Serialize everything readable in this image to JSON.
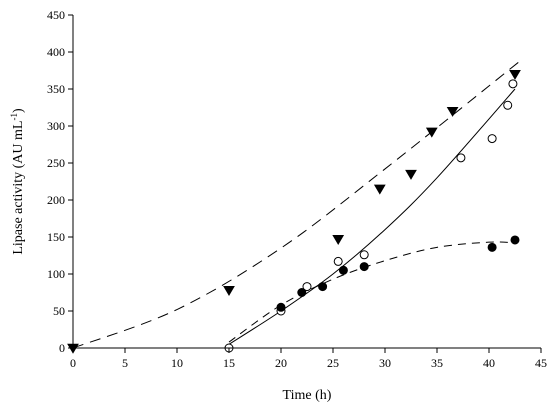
{
  "chart_data": {
    "type": "scatter",
    "title": "",
    "xlabel": "Time (h)",
    "ylabel_main": "Lipase activity (AU mL",
    "ylabel_sup": "-1",
    "ylabel_close": ")",
    "xlim": [
      0,
      45
    ],
    "ylim": [
      0,
      450
    ],
    "xticks": [
      0,
      5,
      10,
      15,
      20,
      25,
      30,
      35,
      40,
      45
    ],
    "yticks": [
      0,
      50,
      100,
      150,
      200,
      250,
      300,
      350,
      400,
      450
    ],
    "grid": false,
    "legend": "none",
    "series": [
      {
        "marker": "triangle-down",
        "fill": "#000000",
        "points": [
          [
            0,
            0
          ],
          [
            15,
            78
          ],
          [
            25.5,
            147
          ],
          [
            29.5,
            215
          ],
          [
            32.5,
            235
          ],
          [
            34.5,
            292
          ],
          [
            36.5,
            320
          ],
          [
            42.5,
            370
          ]
        ],
        "fit_line": "long-dash",
        "fit": [
          [
            0,
            0
          ],
          [
            10,
            52
          ],
          [
            20,
            135
          ],
          [
            30,
            242
          ],
          [
            43,
            388
          ]
        ]
      },
      {
        "marker": "circle",
        "fill": "#ffffff",
        "points": [
          [
            15,
            0
          ],
          [
            20,
            50
          ],
          [
            22.5,
            83
          ],
          [
            25.5,
            117
          ],
          [
            28,
            126
          ],
          [
            37.3,
            257
          ],
          [
            40.3,
            283
          ],
          [
            41.8,
            328
          ],
          [
            42.3,
            357
          ]
        ],
        "fit_line": "solid",
        "fit": [
          [
            15,
            5
          ],
          [
            20,
            50
          ],
          [
            25,
            100
          ],
          [
            30,
            160
          ],
          [
            35,
            230
          ],
          [
            42.5,
            350
          ]
        ]
      },
      {
        "marker": "circle",
        "fill": "#000000",
        "points": [
          [
            20,
            55
          ],
          [
            22,
            75
          ],
          [
            24,
            83
          ],
          [
            26,
            105
          ],
          [
            28,
            110
          ],
          [
            40.3,
            136
          ],
          [
            42.5,
            146
          ]
        ],
        "fit_line": "medium-dash",
        "fit": [
          [
            15,
            8
          ],
          [
            20,
            58
          ],
          [
            25,
            93
          ],
          [
            30,
            118
          ],
          [
            35,
            136
          ],
          [
            40,
            143
          ],
          [
            42.5,
            142
          ]
        ]
      }
    ]
  }
}
